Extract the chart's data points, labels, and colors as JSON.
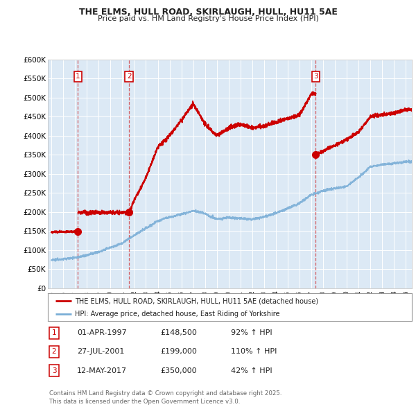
{
  "title1": "THE ELMS, HULL ROAD, SKIRLAUGH, HULL, HU11 5AE",
  "title2": "Price paid vs. HM Land Registry's House Price Index (HPI)",
  "background_color": "#dce9f5",
  "grid_color": "#ffffff",
  "red_color": "#cc0000",
  "blue_color": "#7aaed6",
  "sale_dates": [
    1997.25,
    2001.57,
    2017.37
  ],
  "sale_prices": [
    148500,
    199000,
    350000
  ],
  "sale_labels": [
    "1",
    "2",
    "3"
  ],
  "legend_line1": "THE ELMS, HULL ROAD, SKIRLAUGH, HULL, HU11 5AE (detached house)",
  "legend_line2": "HPI: Average price, detached house, East Riding of Yorkshire",
  "table_rows": [
    [
      "1",
      "01-APR-1997",
      "£148,500",
      "92% ↑ HPI"
    ],
    [
      "2",
      "27-JUL-2001",
      "£199,000",
      "110% ↑ HPI"
    ],
    [
      "3",
      "12-MAY-2017",
      "£350,000",
      "42% ↑ HPI"
    ]
  ],
  "footer": "Contains HM Land Registry data © Crown copyright and database right 2025.\nThis data is licensed under the Open Government Licence v3.0.",
  "ylim": [
    0,
    600000
  ],
  "xlim_start": 1994.7,
  "xlim_end": 2025.5,
  "hpi_anchors_years": [
    1995,
    1996,
    1997,
    1998,
    1999,
    2000,
    2001,
    2002,
    2003,
    2004,
    2005,
    2006,
    2007,
    2008,
    2009,
    2010,
    2011,
    2012,
    2013,
    2014,
    2015,
    2016,
    2017,
    2018,
    2019,
    2020,
    2021,
    2022,
    2023,
    2024,
    2025
  ],
  "hpi_anchors_vals": [
    75000,
    78000,
    82000,
    88000,
    97000,
    108000,
    120000,
    140000,
    160000,
    180000,
    190000,
    198000,
    208000,
    200000,
    183000,
    188000,
    185000,
    182000,
    188000,
    198000,
    210000,
    225000,
    246000,
    255000,
    262000,
    268000,
    290000,
    318000,
    325000,
    328000,
    332000
  ],
  "prop_anchors_seg1_years": [
    1995,
    1997,
    1998,
    1999,
    2000,
    2001
  ],
  "prop_anchors_seg1_vals": [
    148000,
    148500,
    152000,
    153000,
    150000,
    175000
  ],
  "prop_anchors_seg2_years": [
    2001.57,
    2002,
    2003,
    2004,
    2005,
    2006,
    2007,
    2008,
    2009,
    2010,
    2011,
    2012,
    2013,
    2014,
    2015,
    2016,
    2017
  ],
  "prop_anchors_seg2_vals": [
    199000,
    230000,
    290000,
    370000,
    400000,
    440000,
    485000,
    430000,
    400000,
    420000,
    430000,
    420000,
    425000,
    435000,
    445000,
    455000,
    510000
  ],
  "prop_anchors_seg3_years": [
    2017.37,
    2018,
    2019,
    2020,
    2021,
    2022,
    2023,
    2024,
    2025
  ],
  "prop_anchors_seg3_vals": [
    350000,
    360000,
    375000,
    390000,
    410000,
    450000,
    455000,
    460000,
    468000
  ]
}
